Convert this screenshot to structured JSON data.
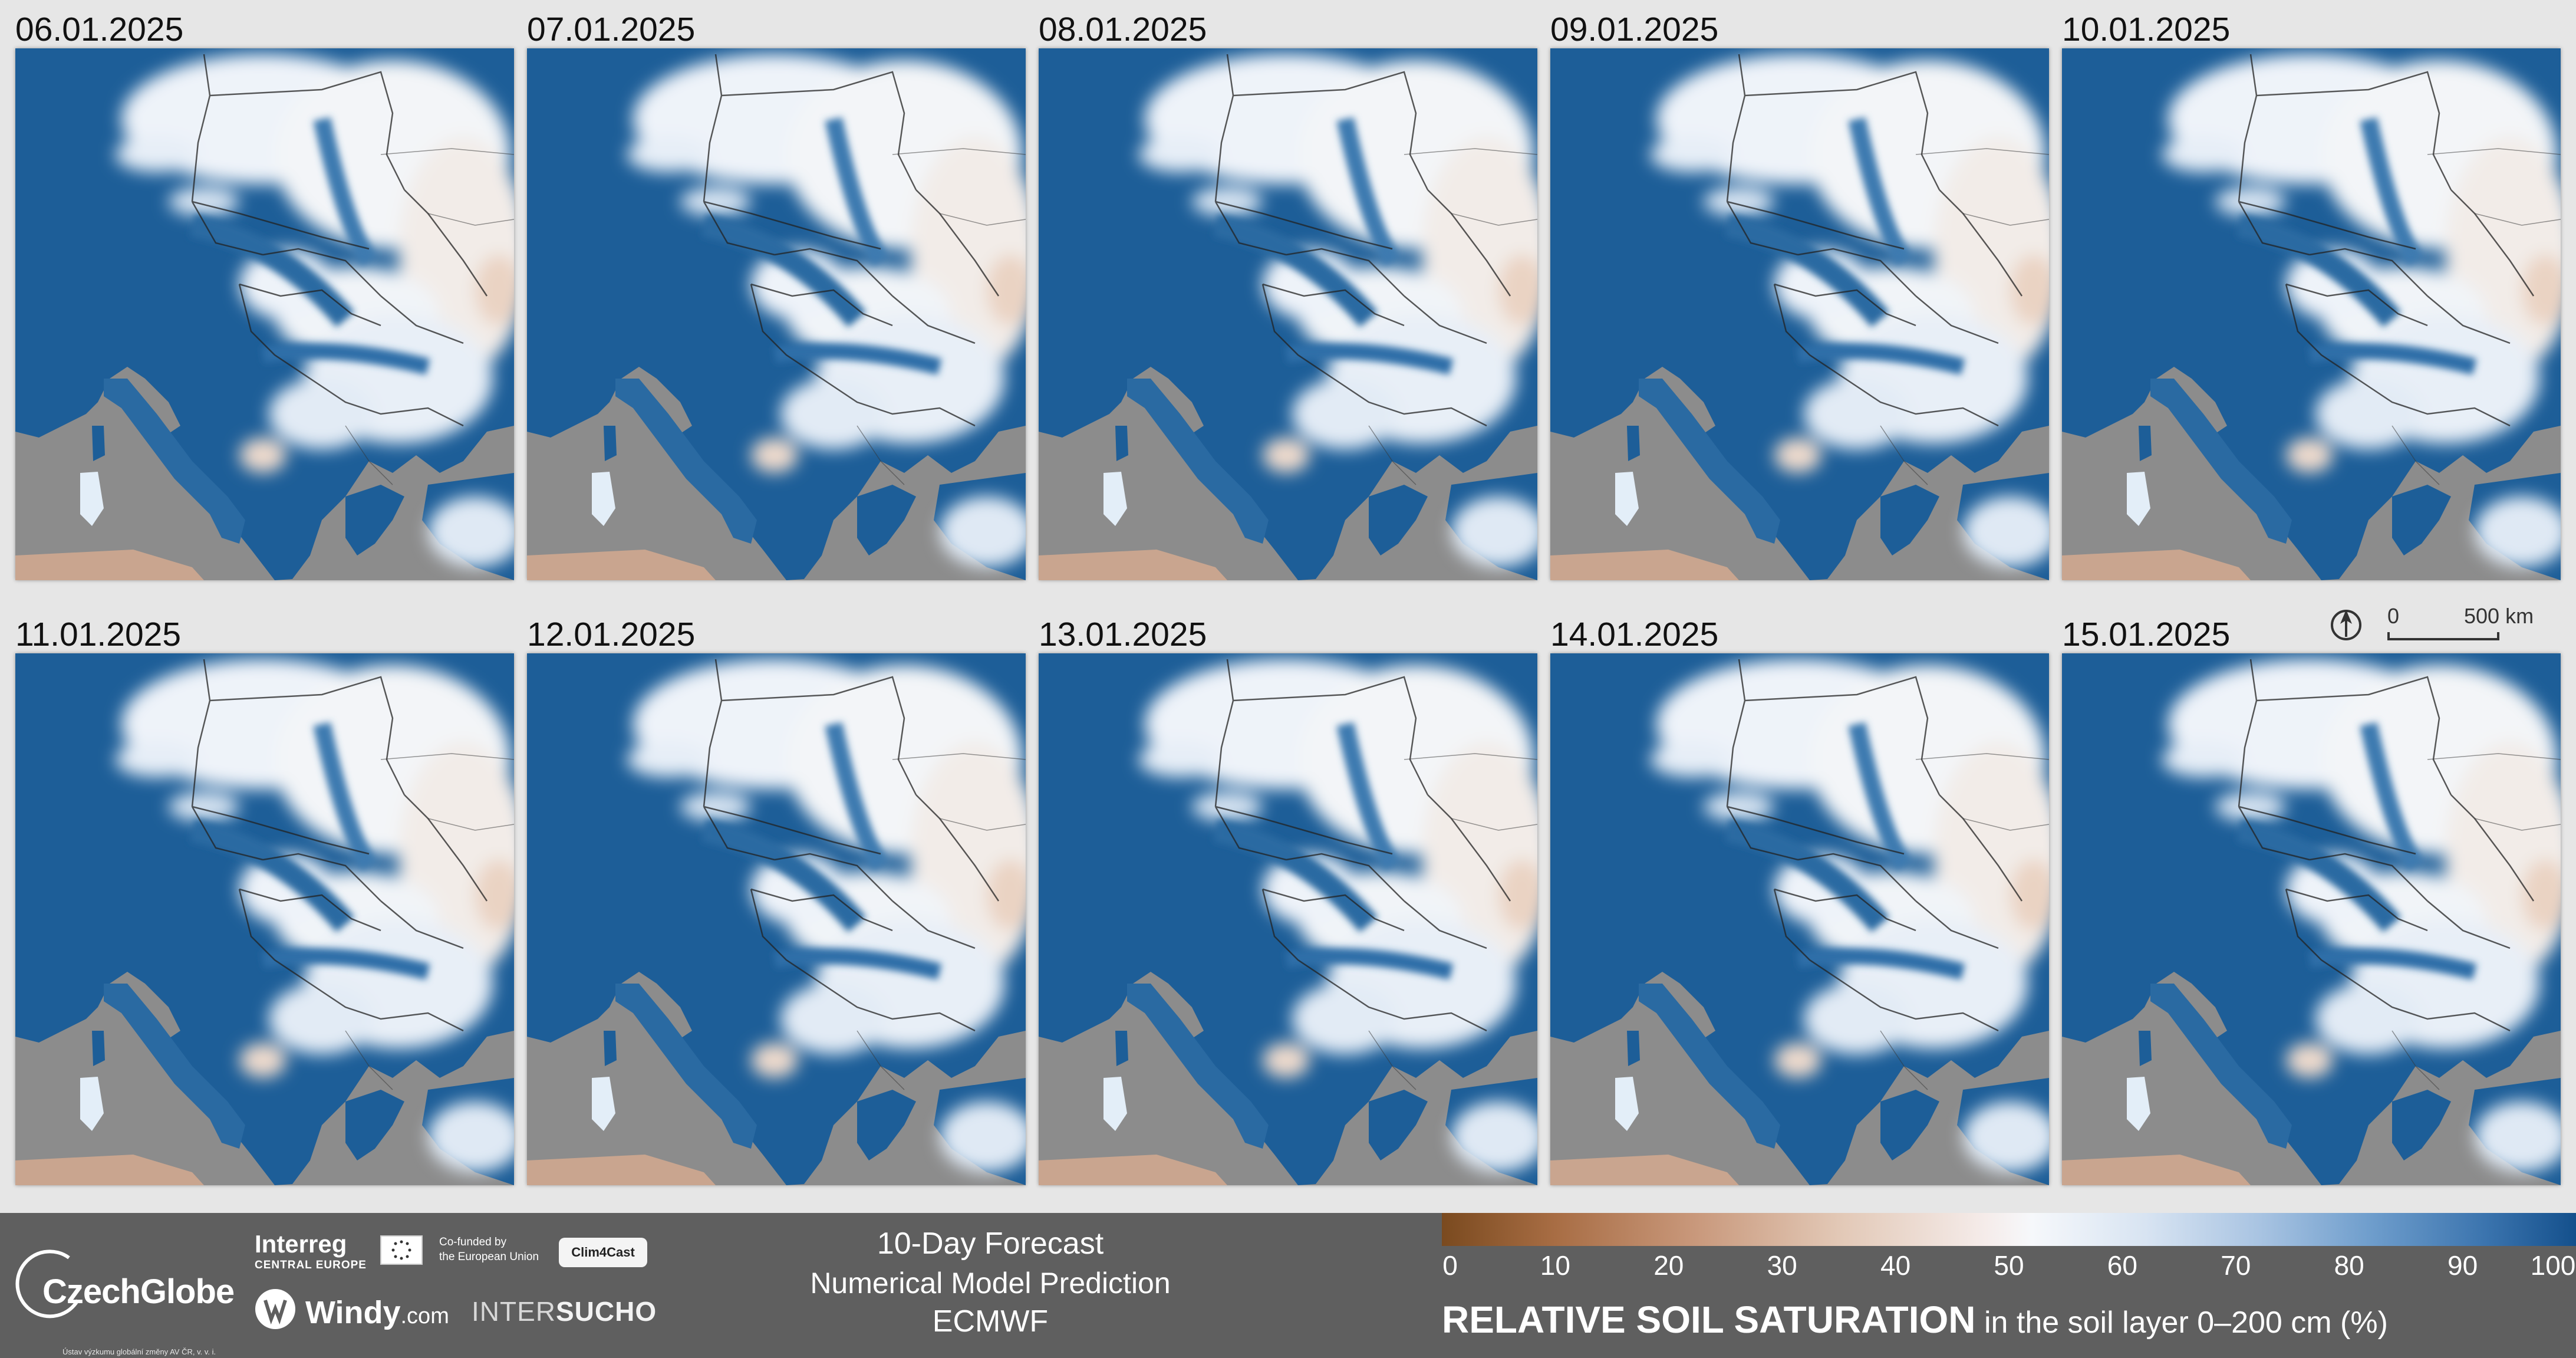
{
  "panels": [
    {
      "date": "06.01.2025"
    },
    {
      "date": "07.01.2025"
    },
    {
      "date": "08.01.2025"
    },
    {
      "date": "09.01.2025"
    },
    {
      "date": "10.01.2025"
    },
    {
      "date": "11.01.2025"
    },
    {
      "date": "12.01.2025"
    },
    {
      "date": "13.01.2025"
    },
    {
      "date": "14.01.2025"
    },
    {
      "date": "15.01.2025"
    }
  ],
  "scale": {
    "zero": "0",
    "distance": "500 km",
    "north_icon": "north-arrow-icon"
  },
  "footer": {
    "czechglobe": "CzechGlobe",
    "czechglobe_sub": "Ústav výzkumu globální změny AV ČR, v. v. i.",
    "interreg": "Interreg",
    "interreg_sub": "CENTRAL EUROPE",
    "eu_text_1": "Co-funded by",
    "eu_text_2": "the European Union",
    "clim4cast": "Clim4Cast",
    "windy": "Windy",
    "windy_suffix": ".com",
    "intersucho_a": "INTER",
    "intersucho_b": "SUCHO",
    "forecast_title": "10-Day Forecast",
    "forecast_sub": "Numerical Model Prediction",
    "forecast_model": "ECMWF"
  },
  "legend": {
    "ticks": [
      "0",
      "10",
      "20",
      "30",
      "40",
      "50",
      "60",
      "70",
      "80",
      "90",
      "100"
    ],
    "title_bold": "RELATIVE SOIL SATURATION",
    "title_rest": " in the soil layer 0–200 cm (%)",
    "colors": {
      "dry": "#7a4a1f",
      "neutral": "#f6f8fb",
      "wet": "#14508c"
    }
  },
  "colors": {
    "land_wet": "#1d5e98",
    "sea": "#8c8c8c",
    "background": "#e6e6e6",
    "footer": "#5f5f5f"
  }
}
